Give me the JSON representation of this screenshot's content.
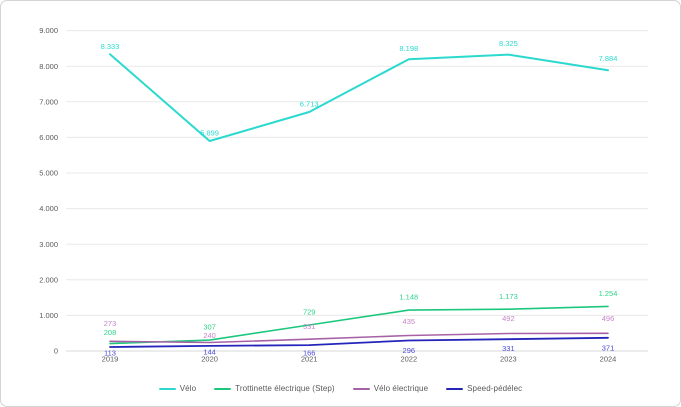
{
  "chart_data": {
    "type": "line",
    "title": "",
    "xlabel": "",
    "ylabel": "",
    "categories": [
      "2019",
      "2020",
      "2021",
      "2022",
      "2023",
      "2024"
    ],
    "series": [
      {
        "name": "Vélo",
        "color": "#2bd9cf",
        "label_color": "#2bd9cf",
        "values": [
          8333,
          5899,
          6713,
          8198,
          8325,
          7884
        ],
        "labels": [
          "8.333",
          "5.899",
          "6.713",
          "8.198",
          "8.325",
          "7.884"
        ],
        "stroke_width": 2,
        "label_dy": [
          -8,
          -8,
          -8,
          -11,
          -11,
          -12
        ]
      },
      {
        "name": "Trottinette électrique (Step)",
        "color": "#1dc87e",
        "label_color": "#2ed389",
        "values": [
          208,
          307,
          729,
          1148,
          1173,
          1254
        ],
        "labels": [
          "208",
          "307",
          "729",
          "1.148",
          "1.173",
          "1.254"
        ],
        "stroke_width": 1.6,
        "label_dy": [
          -11,
          -13,
          -13,
          -13,
          -13,
          -13
        ]
      },
      {
        "name": "Vélo électrique",
        "color": "#a762a7",
        "label_color": "#c785c7",
        "values": [
          273,
          240,
          331,
          435,
          492,
          496
        ],
        "labels": [
          "273",
          "240",
          "331",
          "435",
          "492",
          "496"
        ],
        "stroke_width": 1.6,
        "label_dy": [
          -18,
          -7,
          -13,
          -14,
          -15,
          -15
        ]
      },
      {
        "name": "Speed-pédélec",
        "color": "#2525bb",
        "label_color": "#4a4ad8",
        "values": [
          113,
          144,
          166,
          296,
          331,
          371
        ],
        "labels": [
          "113",
          "144",
          "166",
          "296",
          "331",
          "371"
        ],
        "stroke_width": 1.8,
        "label_dy": [
          6,
          6,
          8,
          10,
          9,
          10
        ]
      }
    ],
    "ylim": [
      0,
      9000
    ],
    "ytick_step": 1000,
    "ytick_labels": [
      "0",
      "1.000",
      "2.000",
      "3.000",
      "4.000",
      "5.000",
      "6.000",
      "7.000",
      "8.000",
      "9.000"
    ],
    "grid": true,
    "gridline_color": "#e8e8e8",
    "zero_axis_color": "#d9d9d9",
    "tick_label_color": "#595959",
    "legend_position": "bottom",
    "number_format": "thousands-dot"
  }
}
